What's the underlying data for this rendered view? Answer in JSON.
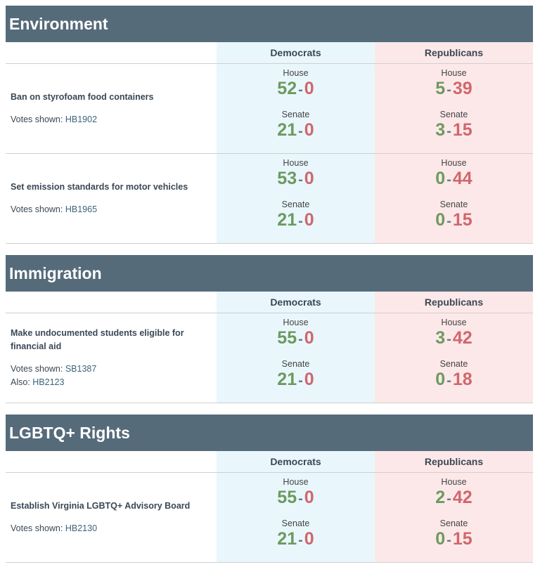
{
  "sections": [
    {
      "title": "Environment",
      "col_dem": "Democrats",
      "col_rep": "Republicans",
      "bills": [
        {
          "title": "Ban on styrofoam food containers",
          "votes_prefix": "Votes shown:",
          "bill_id": "HB1902",
          "dem": {
            "house_label": "House",
            "house_yes": "52",
            "house_no": "0",
            "senate_label": "Senate",
            "senate_yes": "21",
            "senate_no": "0"
          },
          "rep": {
            "house_label": "House",
            "house_yes": "5",
            "house_no": "39",
            "senate_label": "Senate",
            "senate_yes": "3",
            "senate_no": "15"
          }
        },
        {
          "title": "Set emission standards for motor vehicles",
          "votes_prefix": "Votes shown:",
          "bill_id": "HB1965",
          "dem": {
            "house_label": "House",
            "house_yes": "53",
            "house_no": "0",
            "senate_label": "Senate",
            "senate_yes": "21",
            "senate_no": "0"
          },
          "rep": {
            "house_label": "House",
            "house_yes": "0",
            "house_no": "44",
            "senate_label": "Senate",
            "senate_yes": "0",
            "senate_no": "15"
          }
        }
      ]
    },
    {
      "title": "Immigration",
      "col_dem": "Democrats",
      "col_rep": "Republicans",
      "bills": [
        {
          "title_line1": "Make undocumented students eligible for",
          "title_line2": "financial aid",
          "votes_prefix": "Votes shown:",
          "bill_id": "SB1387",
          "also_prefix": "Also:",
          "also_id": "HB2123",
          "dem": {
            "house_label": "House",
            "house_yes": "55",
            "house_no": "0",
            "senate_label": "Senate",
            "senate_yes": "21",
            "senate_no": "0"
          },
          "rep": {
            "house_label": "House",
            "house_yes": "3",
            "house_no": "42",
            "senate_label": "Senate",
            "senate_yes": "0",
            "senate_no": "18"
          }
        }
      ]
    },
    {
      "title": "LGBTQ+ Rights",
      "col_dem": "Democrats",
      "col_rep": "Republicans",
      "bills": [
        {
          "title": "Establish Virginia LGBTQ+ Advisory Board",
          "votes_prefix": "Votes shown:",
          "bill_id": "HB2130",
          "dem": {
            "house_label": "House",
            "house_yes": "55",
            "house_no": "0",
            "senate_label": "Senate",
            "senate_yes": "21",
            "senate_no": "0"
          },
          "rep": {
            "house_label": "House",
            "house_yes": "2",
            "house_no": "42",
            "senate_label": "Senate",
            "senate_yes": "0",
            "senate_no": "15"
          }
        }
      ]
    }
  ],
  "separator": "-",
  "colors": {
    "header_bg": "#566b7a",
    "dem_bg": "#e9f7fd",
    "rep_bg": "#fde8e9",
    "yes": "#6c9a5e",
    "no": "#d0676c"
  }
}
